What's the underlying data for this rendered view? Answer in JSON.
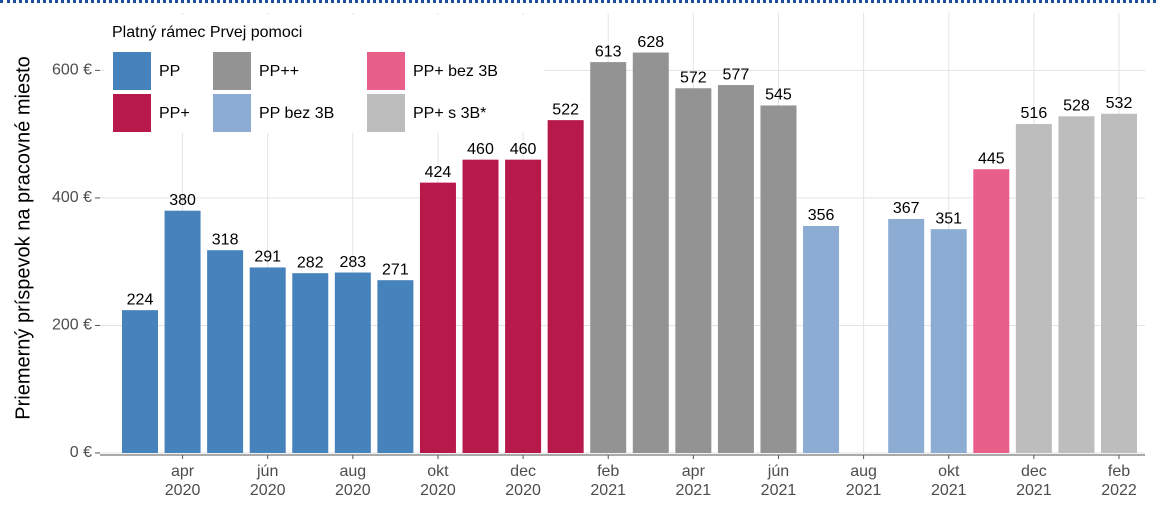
{
  "chart_data": {
    "type": "bar",
    "legend_title": "Platný rámec Prvej pomoci",
    "y_label": "Priemerný príspevok na pracovné miesto",
    "categories": [
      null,
      "apr\n2020",
      null,
      "jún\n2020",
      null,
      "aug\n2020",
      null,
      "okt\n2020",
      null,
      "dec\n2020",
      null,
      "feb\n2021",
      null,
      "apr\n2021",
      null,
      "jún\n2021",
      null,
      "aug\n2021",
      null,
      "okt\n2021",
      null,
      "dec\n2021",
      null,
      "feb\n2022"
    ],
    "series": [
      {
        "name": "PP",
        "color": "#4682bc",
        "values": [
          224,
          380,
          318,
          291,
          282,
          283,
          271,
          null,
          null,
          null,
          null,
          null,
          null,
          null,
          null,
          null,
          null,
          null,
          null,
          null,
          null,
          null,
          null,
          null
        ]
      },
      {
        "name": "PP+",
        "color": "#b8194b",
        "values": [
          null,
          null,
          null,
          null,
          null,
          null,
          null,
          424,
          460,
          460,
          522,
          null,
          null,
          null,
          null,
          null,
          null,
          null,
          null,
          null,
          null,
          null,
          null,
          null
        ]
      },
      {
        "name": "PP++",
        "color": "#939393",
        "values": [
          null,
          null,
          null,
          null,
          null,
          null,
          null,
          null,
          null,
          null,
          null,
          613,
          628,
          572,
          577,
          545,
          null,
          null,
          null,
          null,
          null,
          null,
          null,
          null
        ]
      },
      {
        "name": "PP bez 3B",
        "color": "#8cacd4",
        "values": [
          null,
          null,
          null,
          null,
          null,
          null,
          null,
          null,
          null,
          null,
          null,
          null,
          null,
          null,
          null,
          null,
          356,
          null,
          367,
          351,
          null,
          null,
          null,
          null
        ]
      },
      {
        "name": "PP+ bez 3B",
        "color": "#e8608a",
        "values": [
          null,
          null,
          null,
          null,
          null,
          null,
          null,
          null,
          null,
          null,
          null,
          null,
          null,
          null,
          null,
          null,
          null,
          null,
          null,
          null,
          445,
          null,
          null,
          null
        ]
      },
      {
        "name": "PP+ s 3B*",
        "color": "#bdbdbd",
        "values": [
          null,
          null,
          null,
          null,
          null,
          null,
          null,
          null,
          null,
          null,
          null,
          null,
          null,
          null,
          null,
          null,
          null,
          null,
          null,
          null,
          null,
          516,
          528,
          532
        ]
      }
    ],
    "ylim": [
      0,
      690
    ],
    "yticks": [
      {
        "value": 0,
        "label": "0 €"
      },
      {
        "value": 200,
        "label": "200 €"
      },
      {
        "value": 400,
        "label": "400 €"
      },
      {
        "value": 600,
        "label": "600 €"
      }
    ],
    "grid": true
  }
}
